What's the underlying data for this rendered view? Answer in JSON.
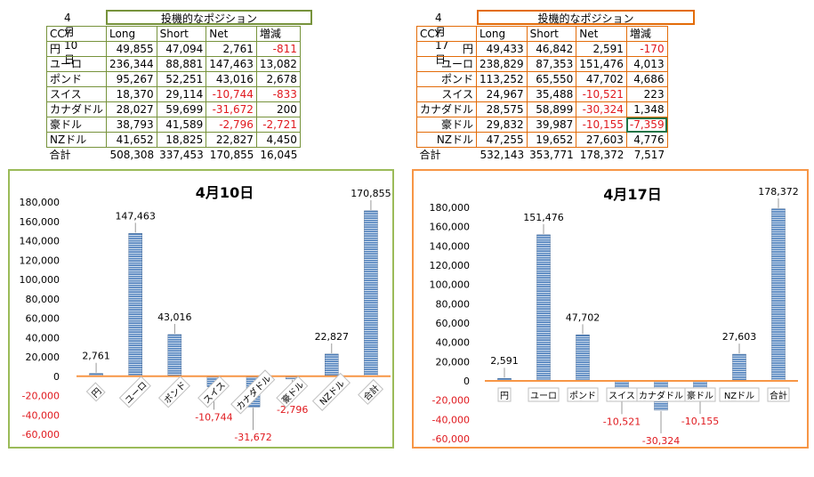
{
  "tables": [
    {
      "date": "4月10日",
      "title": "投機的なポジション",
      "headers": [
        "CCY",
        "Long",
        "Short",
        "Net",
        "増減"
      ],
      "rows": [
        [
          "円",
          "49,855",
          "47,094",
          "2,761",
          "-811"
        ],
        [
          "ユーロ",
          "236,344",
          "88,881",
          "147,463",
          "13,082"
        ],
        [
          "ポンド",
          "95,267",
          "52,251",
          "43,016",
          "2,678"
        ],
        [
          "スイス",
          "18,370",
          "29,114",
          "-10,744",
          "-833"
        ],
        [
          "カナダドル",
          "28,027",
          "59,699",
          "-31,672",
          "200"
        ],
        [
          "豪ドル",
          "38,793",
          "41,589",
          "-2,796",
          "-2,721"
        ],
        [
          "NZドル",
          "41,652",
          "18,825",
          "22,827",
          "4,450"
        ]
      ],
      "total": [
        "合計",
        "508,308",
        "337,453",
        "170,855",
        "16,045"
      ]
    },
    {
      "date": "4月17日",
      "title": "投機的なポジション",
      "headers": [
        "CCY",
        "Long",
        "Short",
        "Net",
        "増減"
      ],
      "rows": [
        [
          "円",
          "49,433",
          "46,842",
          "2,591",
          "-170"
        ],
        [
          "ユーロ",
          "238,829",
          "87,353",
          "151,476",
          "4,013"
        ],
        [
          "ポンド",
          "113,252",
          "65,550",
          "47,702",
          "4,686"
        ],
        [
          "スイス",
          "24,967",
          "35,488",
          "-10,521",
          "223"
        ],
        [
          "カナダドル",
          "28,575",
          "58,899",
          "-30,324",
          "1,348"
        ],
        [
          "豪ドル",
          "29,832",
          "39,987",
          "-10,155",
          "-7,359"
        ],
        [
          "NZドル",
          "47,255",
          "19,652",
          "27,603",
          "4,776"
        ]
      ],
      "total": [
        "合計",
        "532,143",
        "353,771",
        "178,372",
        "7,517"
      ]
    }
  ],
  "colors": {
    "table1_border": "#77933c",
    "table2_border": "#e36c09",
    "chart1_border": "#9bbb59",
    "chart2_border": "#f79646",
    "bar_fill": "#4f81bd",
    "zero_line": "#f79646",
    "negative_text": "#e0191e"
  },
  "chart_data": [
    {
      "type": "bar",
      "title": "4月10日",
      "categories": [
        "円",
        "ユーロ",
        "ポンド",
        "スイス",
        "カナダドル",
        "豪ドル",
        "NZドル",
        "合計"
      ],
      "values": [
        2761,
        147463,
        43016,
        -10744,
        -31672,
        -2796,
        22827,
        170855
      ],
      "value_labels": [
        "2,761",
        "147,463",
        "43,016",
        "-10,744",
        "-31,672",
        "-2,796",
        "22,827",
        "170,855"
      ],
      "yticks": [
        "180,000",
        "160,000",
        "140,000",
        "120,000",
        "100,000",
        "80,000",
        "60,000",
        "40,000",
        "20,000",
        "0",
        "-20,000",
        "-40,000",
        "-60,000"
      ],
      "ylim": [
        -60000,
        180000
      ],
      "grid": false,
      "legend": false,
      "category_label_style": "rotated"
    },
    {
      "type": "bar",
      "title": "4月17日",
      "categories": [
        "円",
        "ユーロ",
        "ポンド",
        "スイス",
        "カナダドル",
        "豪ドル",
        "NZドル",
        "合計"
      ],
      "values": [
        2591,
        151476,
        47702,
        -10521,
        -30324,
        -10155,
        27603,
        178372
      ],
      "value_labels": [
        "2,591",
        "151,476",
        "47,702",
        "-10,521",
        "-30,324",
        "-10,155",
        "27,603",
        "178,372"
      ],
      "yticks": [
        "180,000",
        "160,000",
        "140,000",
        "120,000",
        "100,000",
        "80,000",
        "60,000",
        "40,000",
        "20,000",
        "0",
        "-20,000",
        "-40,000",
        "-60,000"
      ],
      "ylim": [
        -60000,
        180000
      ],
      "grid": false,
      "legend": false,
      "category_label_style": "horizontal"
    }
  ]
}
